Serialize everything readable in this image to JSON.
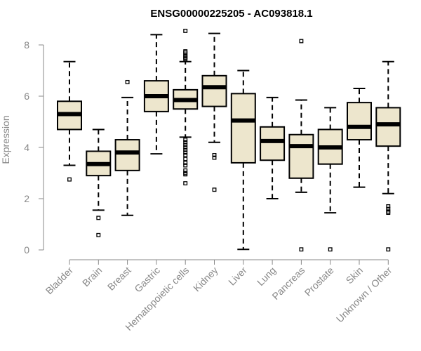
{
  "chart_data": {
    "type": "boxplot",
    "title": "ENSG00000225205 - AC093818.1",
    "ylabel": "Expression",
    "ylim": [
      0,
      8
    ],
    "yticks": [
      0,
      2,
      4,
      6,
      8
    ],
    "colors": {
      "box_fill": "#ede6cd",
      "stroke": "#000000",
      "axis": "#888888"
    },
    "categories": [
      "Bladder",
      "Brain",
      "Breast",
      "Gastric",
      "Hematopoietic cells",
      "Kidney",
      "Liver",
      "Lung",
      "Pancreas",
      "Prostate",
      "Skin",
      "Unknown / Other"
    ],
    "boxes": [
      {
        "name": "Bladder",
        "whisker_low": 3.3,
        "q1": 4.7,
        "median": 5.3,
        "q3": 5.8,
        "whisker_high": 7.35,
        "outliers": [
          2.75
        ]
      },
      {
        "name": "Brain",
        "whisker_low": 1.55,
        "q1": 2.9,
        "median": 3.35,
        "q3": 3.85,
        "whisker_high": 4.7,
        "outliers": [
          1.25,
          0.58
        ]
      },
      {
        "name": "Breast",
        "whisker_low": 1.35,
        "q1": 3.1,
        "median": 3.8,
        "q3": 4.3,
        "whisker_high": 5.95,
        "outliers": [
          6.55
        ]
      },
      {
        "name": "Gastric",
        "whisker_low": 3.75,
        "q1": 5.4,
        "median": 6.0,
        "q3": 6.6,
        "whisker_high": 8.4,
        "outliers": []
      },
      {
        "name": "Hematopoietic cells",
        "whisker_low": 4.4,
        "q1": 5.5,
        "median": 5.85,
        "q3": 6.25,
        "whisker_high": 7.35,
        "outliers": [
          8.55,
          7.75,
          7.7,
          7.62,
          7.55,
          7.5,
          7.45,
          4.3,
          4.2,
          4.1,
          4.0,
          3.9,
          3.8,
          3.7,
          3.55,
          3.4,
          3.3,
          3.1,
          3.0,
          2.95,
          2.6
        ]
      },
      {
        "name": "Kidney",
        "whisker_low": 4.2,
        "q1": 5.6,
        "median": 6.35,
        "q3": 6.8,
        "whisker_high": 8.45,
        "outliers": [
          3.7,
          3.6,
          2.35
        ]
      },
      {
        "name": "Liver",
        "whisker_low": 0.02,
        "q1": 3.4,
        "median": 5.05,
        "q3": 6.1,
        "whisker_high": 7.0,
        "outliers": []
      },
      {
        "name": "Lung",
        "whisker_low": 2.0,
        "q1": 3.5,
        "median": 4.25,
        "q3": 4.8,
        "whisker_high": 5.95,
        "outliers": []
      },
      {
        "name": "Pancreas",
        "whisker_low": 2.25,
        "q1": 2.8,
        "median": 4.05,
        "q3": 4.5,
        "whisker_high": 5.85,
        "outliers": [
          8.15,
          0.02
        ]
      },
      {
        "name": "Prostate",
        "whisker_low": 1.45,
        "q1": 3.35,
        "median": 4.0,
        "q3": 4.7,
        "whisker_high": 5.55,
        "outliers": [
          0.02
        ]
      },
      {
        "name": "Skin",
        "whisker_low": 2.45,
        "q1": 4.3,
        "median": 4.8,
        "q3": 5.75,
        "whisker_high": 6.3,
        "outliers": []
      },
      {
        "name": "Unknown / Other",
        "whisker_low": 2.2,
        "q1": 4.05,
        "median": 4.9,
        "q3": 5.55,
        "whisker_high": 7.35,
        "outliers": [
          1.7,
          1.6,
          1.5,
          1.45,
          0.02
        ]
      }
    ]
  }
}
